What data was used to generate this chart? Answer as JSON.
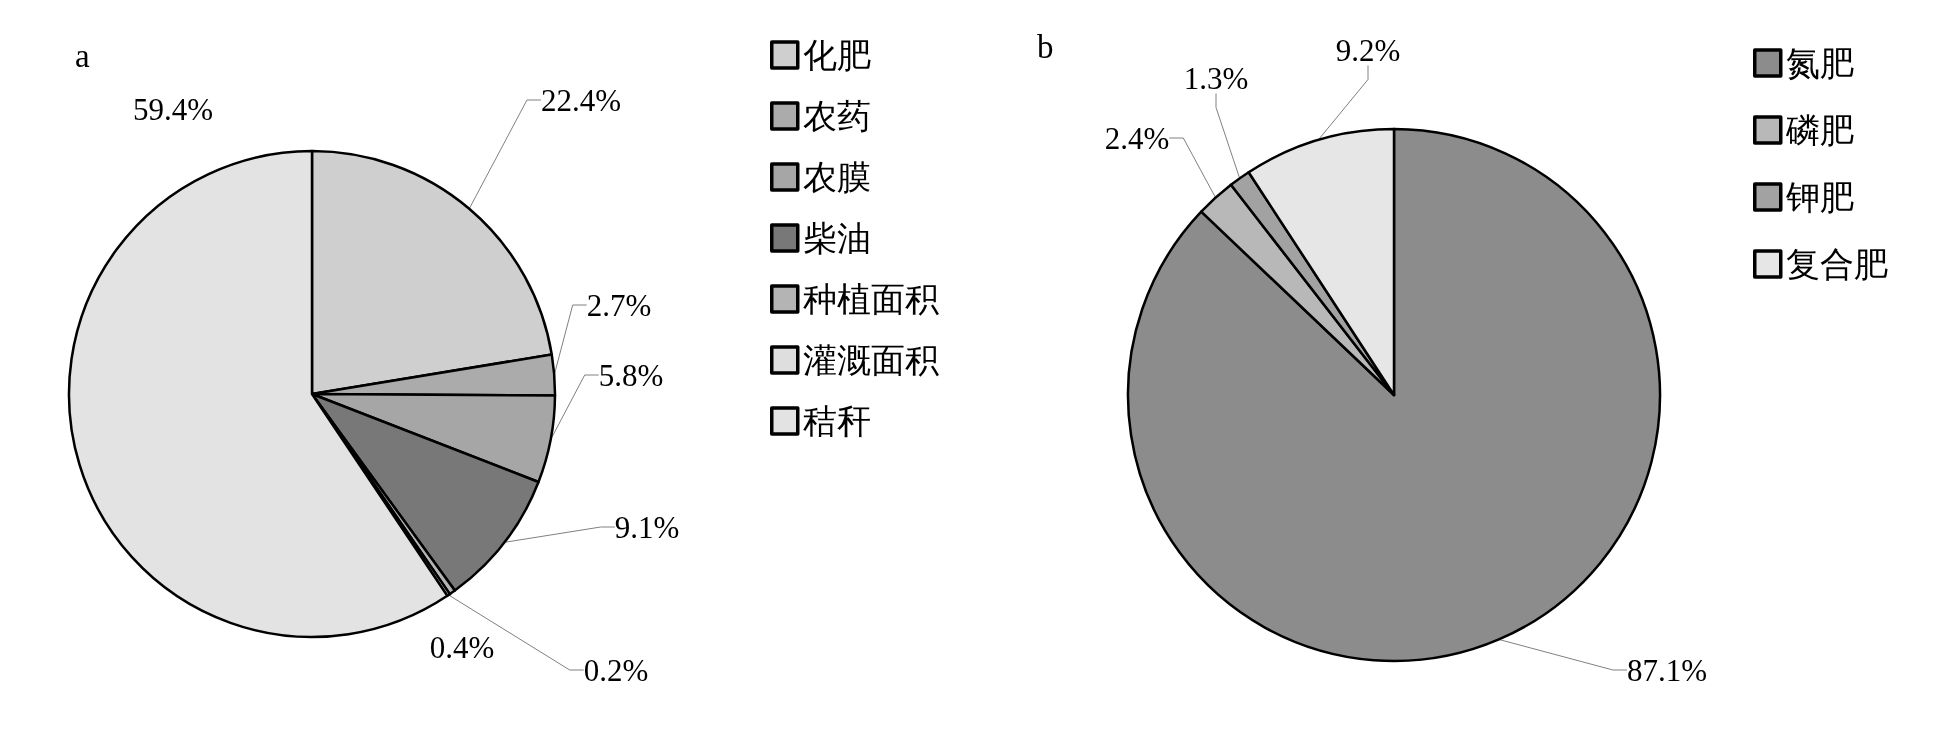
{
  "chart_data": [
    {
      "type": "pie",
      "title": "a",
      "categories": [
        "化肥",
        "农药",
        "农膜",
        "柴油",
        "种植面积",
        "灌溉面积",
        "秸秆"
      ],
      "values": [
        22.4,
        2.7,
        5.8,
        9.1,
        0.4,
        0.2,
        59.4
      ],
      "colors": [
        "#cfcfcf",
        "#ababab",
        "#a6a6a6",
        "#787878",
        "#b4b4b4",
        "#dedede",
        "#e3e3e3"
      ],
      "value_labels": [
        "22.4%",
        "2.7%",
        "5.8%",
        "9.1%",
        "0.4%",
        "0.2%",
        "59.4%"
      ],
      "legend": "top right"
    },
    {
      "type": "pie",
      "title": "b",
      "categories": [
        "氮肥",
        "磷肥",
        "钾肥",
        "复合肥"
      ],
      "values": [
        87.1,
        2.4,
        1.3,
        9.2
      ],
      "colors": [
        "#8c8c8c",
        "#b8b8b8",
        "#a2a2a2",
        "#e6e6e6"
      ],
      "value_labels": [
        "87.1%",
        "2.4%",
        "1.3%",
        "9.2%"
      ],
      "legend": "top right"
    }
  ]
}
